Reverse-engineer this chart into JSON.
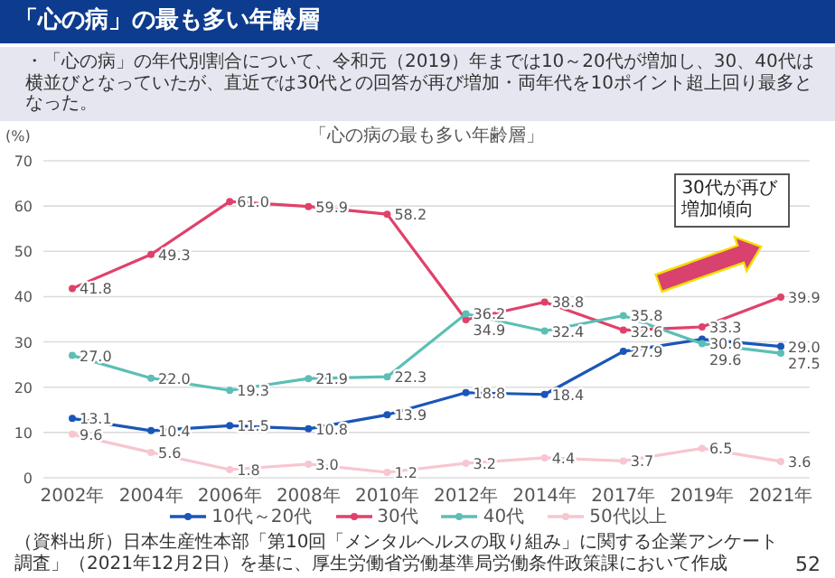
{
  "chart_data": {
    "type": "line",
    "title": "「心の病」の最も多い年齢層",
    "subtitle": "・「心の病」の年代別割合について、令和元（2019）年までは10～20代が増加し、30、40代は横並びとなっていたが、直近では30代との回答が再び増加・両年代を10ポイント超上回り最多となった。",
    "ylabel": "(%)",
    "annotations": [
      "「心の病の最も多い年齢層」",
      "30代が再び増加傾向",
      "（資料出所）日本生産性本部「第10回「メンタルヘルスの取り組み」に関する企業アンケート調査」（2021年12月2日）を基に、厚生労働省労働基準局労働条件政策課において作成",
      "52"
    ],
    "categories": [
      "2002年",
      "2004年",
      "2006年",
      "2008年",
      "2010年",
      "2012年",
      "2014年",
      "2017年",
      "2019年",
      "2021年"
    ],
    "series": [
      {
        "name": "10代～20代",
        "color": "#1a56b8",
        "values": [
          13.1,
          10.4,
          11.5,
          10.8,
          13.9,
          18.8,
          18.4,
          27.9,
          30.6,
          29.0
        ],
        "value_labels": [
          "13.1",
          "10.4",
          "11.5",
          "10.8",
          "13.9",
          "18.8",
          "18.4",
          "27.9",
          "30.6",
          "29.0"
        ]
      },
      {
        "name": "30代",
        "color": "#e0416a",
        "values": [
          41.8,
          49.3,
          61.0,
          59.9,
          58.2,
          34.9,
          38.8,
          32.6,
          33.3,
          39.9
        ],
        "value_labels": [
          "41.8",
          "49.3",
          "61.0",
          "59.9",
          "58.2",
          "34.9",
          "38.8",
          "32.6",
          "33.3",
          "39.9"
        ]
      },
      {
        "name": "40代",
        "color": "#5bbfb5",
        "values": [
          27.0,
          22.0,
          19.3,
          21.9,
          22.3,
          36.2,
          32.4,
          35.8,
          29.6,
          27.5
        ],
        "value_labels": [
          "27.0",
          "22.0",
          "19.3",
          "21.9",
          "22.3",
          "36.2",
          "32.4",
          "35.8",
          "29.6",
          "27.5"
        ]
      },
      {
        "name": "50代以上",
        "color": "#f7c6d0",
        "values": [
          9.6,
          5.6,
          1.8,
          3.0,
          1.2,
          3.2,
          4.4,
          3.7,
          6.5,
          3.6
        ],
        "value_labels": [
          "9.6",
          "5.6",
          "1.8",
          "3.0",
          "1.2",
          "3.2",
          "4.4",
          "3.7",
          "6.5",
          "3.6"
        ]
      }
    ],
    "ylim": [
      0,
      70
    ],
    "yticks": [
      0,
      10,
      20,
      30,
      40,
      50,
      60,
      70
    ],
    "grid": "y",
    "legend": "bottom",
    "marker": "circle",
    "line_style": "solid"
  }
}
